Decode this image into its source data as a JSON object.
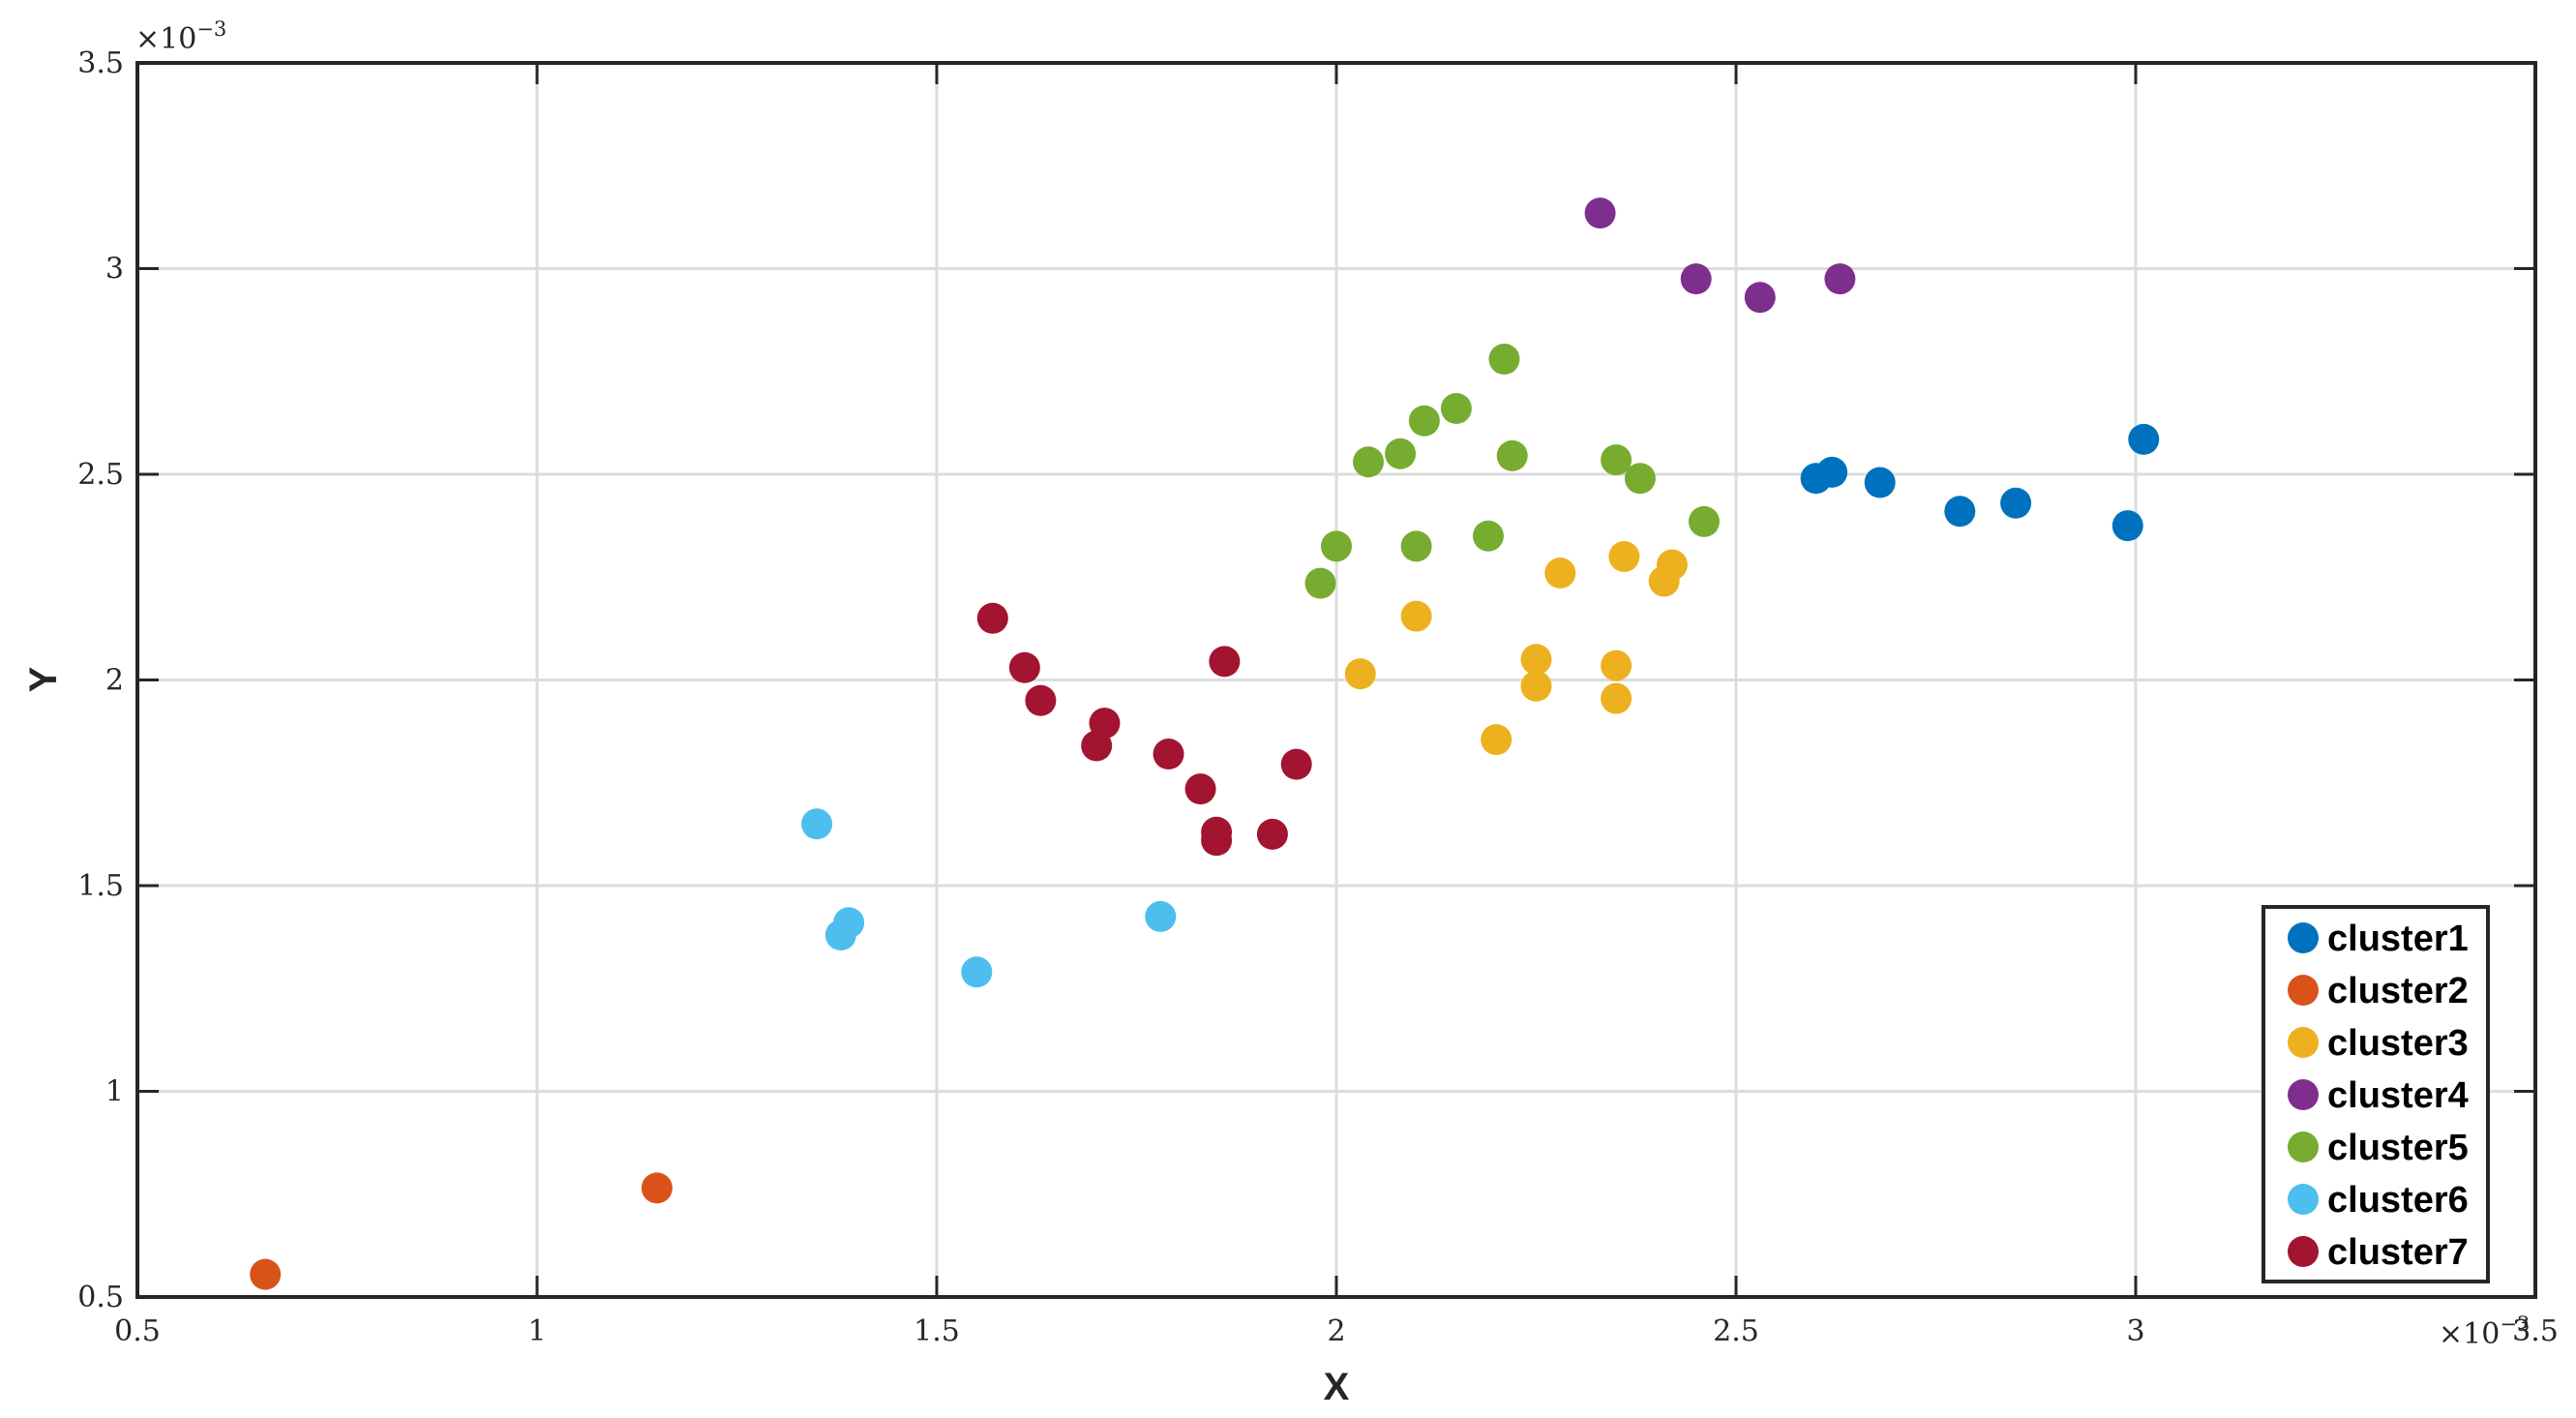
{
  "chart_data": {
    "type": "scatter",
    "title": "",
    "xlabel": "X",
    "ylabel": "Y",
    "x_multiplier": "×10",
    "x_multiplier_exp": "−3",
    "y_multiplier": "×10",
    "y_multiplier_exp": "−3",
    "xlim": [
      0.5,
      3.5
    ],
    "ylim": [
      0.5,
      3.5
    ],
    "xticks": [
      "0.5",
      "1",
      "1.5",
      "2",
      "2.5",
      "3",
      "3.5"
    ],
    "yticks": [
      "0.5",
      "1",
      "1.5",
      "2",
      "2.5",
      "3",
      "3.5"
    ],
    "grid": true,
    "legend_position": "bottom-right",
    "series": [
      {
        "name": "cluster1",
        "color": "#0072BD",
        "points": [
          [
            2.6,
            2.49
          ],
          [
            2.62,
            2.505
          ],
          [
            2.68,
            2.48
          ],
          [
            2.78,
            2.41
          ],
          [
            2.85,
            2.43
          ],
          [
            2.99,
            2.375
          ],
          [
            3.01,
            2.585
          ]
        ]
      },
      {
        "name": "cluster2",
        "color": "#D95319",
        "points": [
          [
            0.66,
            0.555
          ],
          [
            1.15,
            0.765
          ]
        ]
      },
      {
        "name": "cluster3",
        "color": "#EDB120",
        "points": [
          [
            2.03,
            2.015
          ],
          [
            2.1,
            2.155
          ],
          [
            2.2,
            1.855
          ],
          [
            2.25,
            2.05
          ],
          [
            2.25,
            1.985
          ],
          [
            2.28,
            2.26
          ],
          [
            2.35,
            2.035
          ],
          [
            2.35,
            1.955
          ],
          [
            2.36,
            2.3
          ],
          [
            2.41,
            2.24
          ],
          [
            2.42,
            2.28
          ]
        ]
      },
      {
        "name": "cluster4",
        "color": "#7E2F8E",
        "points": [
          [
            2.33,
            3.135
          ],
          [
            2.45,
            2.975
          ],
          [
            2.53,
            2.93
          ],
          [
            2.63,
            2.975
          ]
        ]
      },
      {
        "name": "cluster5",
        "color": "#77AC30",
        "points": [
          [
            1.98,
            2.235
          ],
          [
            2.0,
            2.325
          ],
          [
            2.04,
            2.53
          ],
          [
            2.08,
            2.55
          ],
          [
            2.1,
            2.325
          ],
          [
            2.11,
            2.63
          ],
          [
            2.15,
            2.66
          ],
          [
            2.19,
            2.35
          ],
          [
            2.21,
            2.78
          ],
          [
            2.22,
            2.545
          ],
          [
            2.35,
            2.535
          ],
          [
            2.38,
            2.49
          ],
          [
            2.46,
            2.385
          ]
        ]
      },
      {
        "name": "cluster6",
        "color": "#4DBEEE",
        "points": [
          [
            1.35,
            1.65
          ],
          [
            1.38,
            1.38
          ],
          [
            1.39,
            1.41
          ],
          [
            1.55,
            1.29
          ],
          [
            1.78,
            1.425
          ]
        ]
      },
      {
        "name": "cluster7",
        "color": "#A2142F",
        "points": [
          [
            1.57,
            2.15
          ],
          [
            1.61,
            2.03
          ],
          [
            1.63,
            1.95
          ],
          [
            1.7,
            1.84
          ],
          [
            1.71,
            1.895
          ],
          [
            1.79,
            1.82
          ],
          [
            1.83,
            1.735
          ],
          [
            1.85,
            1.63
          ],
          [
            1.85,
            1.61
          ],
          [
            1.86,
            2.045
          ],
          [
            1.92,
            1.625
          ],
          [
            1.95,
            1.795
          ]
        ]
      }
    ]
  }
}
